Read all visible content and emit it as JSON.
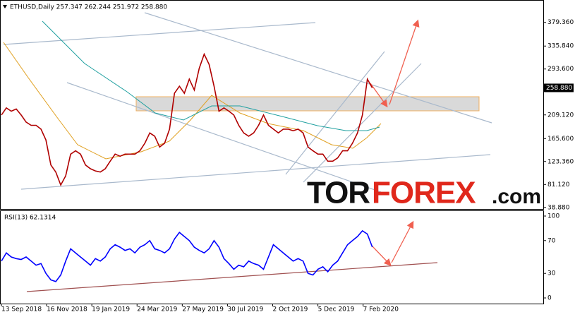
{
  "header": "ETHUSD,Daily 257.347 262.244 251.972 258.880",
  "watermark": {
    "parts": [
      "TOR",
      "FOREX",
      ".com"
    ]
  },
  "chart_data": [
    {
      "type": "line",
      "name": "price",
      "x": [
        "2018-09-13",
        "2018-09-20",
        "2018-09-27",
        "2018-10-04",
        "2018-10-11",
        "2018-10-18",
        "2018-10-25",
        "2018-11-01",
        "2018-11-08",
        "2018-11-15",
        "2018-11-22",
        "2018-11-29",
        "2018-12-06",
        "2018-12-13",
        "2018-12-20",
        "2018-12-27",
        "2019-01-03",
        "2019-01-10",
        "2019-01-17",
        "2019-01-24",
        "2019-01-31",
        "2019-02-07",
        "2019-02-14",
        "2019-02-21",
        "2019-02-28",
        "2019-03-07",
        "2019-03-14",
        "2019-03-21",
        "2019-03-28",
        "2019-04-04",
        "2019-04-11",
        "2019-04-18",
        "2019-04-25",
        "2019-05-02",
        "2019-05-09",
        "2019-05-16",
        "2019-05-23",
        "2019-05-30",
        "2019-06-06",
        "2019-06-13",
        "2019-06-20",
        "2019-06-27",
        "2019-07-04",
        "2019-07-11",
        "2019-07-18",
        "2019-07-25",
        "2019-08-01",
        "2019-08-08",
        "2019-08-15",
        "2019-08-22",
        "2019-08-29",
        "2019-09-05",
        "2019-09-12",
        "2019-09-19",
        "2019-09-26",
        "2019-10-03",
        "2019-10-10",
        "2019-10-17",
        "2019-10-24",
        "2019-10-31",
        "2019-11-07",
        "2019-11-14",
        "2019-11-21",
        "2019-11-28",
        "2019-12-05",
        "2019-12-12",
        "2019-12-19",
        "2019-12-26",
        "2020-01-02",
        "2020-01-09",
        "2020-01-16",
        "2020-01-23",
        "2020-01-30",
        "2020-02-06",
        "2020-02-13",
        "2020-02-20"
      ],
      "series": [
        {
          "name": "ETHUSD",
          "color": "#b00000",
          "values": [
            209,
            222,
            216,
            220,
            209,
            196,
            190,
            190,
            183,
            163,
            117,
            104,
            80,
            97,
            137,
            143,
            137,
            117,
            110,
            106,
            104,
            110,
            124,
            137,
            133,
            137,
            137,
            137,
            143,
            157,
            176,
            170,
            150,
            157,
            183,
            249,
            262,
            249,
            275,
            255,
            295,
            321,
            302,
            262,
            216,
            222,
            216,
            209,
            190,
            176,
            170,
            176,
            190,
            209,
            190,
            183,
            176,
            183,
            183,
            180,
            183,
            176,
            150,
            143,
            137,
            137,
            124,
            124,
            130,
            143,
            143,
            157,
            176,
            209,
            275,
            258.88
          ]
        }
      ],
      "last_price": {
        "value": 258.88,
        "label": "258.880"
      },
      "xlim": [
        "2018-09-13",
        "2020-10-19"
      ],
      "xticks": [
        {
          "value": "2018-09-13",
          "label": "13 Sep 2018"
        },
        {
          "value": "2018-11-16",
          "label": "16 Nov 2018"
        },
        {
          "value": "2019-01-19",
          "label": "19 Jan 2019"
        },
        {
          "value": "2019-03-24",
          "label": "24 Mar 2019"
        },
        {
          "value": "2019-05-27",
          "label": "27 May 2019"
        },
        {
          "value": "2019-07-30",
          "label": "30 Jul 2019"
        },
        {
          "value": "2019-10-02",
          "label": "2 Oct 2019"
        },
        {
          "value": "2019-12-05",
          "label": "5 Dec 2019"
        },
        {
          "value": "2020-02-07",
          "label": "7 Feb 2020"
        }
      ],
      "ylim": [
        36,
        418
      ],
      "yticks": [
        {
          "value": 38.88,
          "label": "38.880"
        },
        {
          "value": 81.12,
          "label": "81.120"
        },
        {
          "value": 123.36,
          "label": "123.360"
        },
        {
          "value": 165.6,
          "label": "165.600"
        },
        {
          "value": 209.12,
          "label": "209.120"
        },
        {
          "value": 293.6,
          "label": "293.600"
        },
        {
          "value": 335.84,
          "label": "335.840"
        },
        {
          "value": 379.36,
          "label": "379.360"
        }
      ]
    },
    {
      "type": "line",
      "name": "rsi",
      "title": "RSI(13) 62.1314",
      "series": [
        {
          "name": "RSI",
          "color": "#0000ff",
          "values": [
            45,
            55,
            50,
            48,
            47,
            50,
            45,
            40,
            42,
            30,
            22,
            20,
            28,
            45,
            60,
            55,
            50,
            45,
            40,
            48,
            45,
            50,
            60,
            65,
            62,
            58,
            60,
            55,
            62,
            65,
            70,
            60,
            58,
            55,
            60,
            72,
            80,
            75,
            70,
            62,
            58,
            55,
            60,
            70,
            62,
            48,
            42,
            35,
            40,
            38,
            45,
            42,
            40,
            35,
            50,
            65,
            60,
            55,
            50,
            45,
            48,
            45,
            30,
            28,
            35,
            38,
            32,
            40,
            45,
            55,
            65,
            70,
            75,
            82,
            78,
            62.13
          ]
        }
      ],
      "ylim": [
        0,
        100
      ],
      "yticks": [
        0,
        30,
        70,
        100
      ]
    }
  ]
}
